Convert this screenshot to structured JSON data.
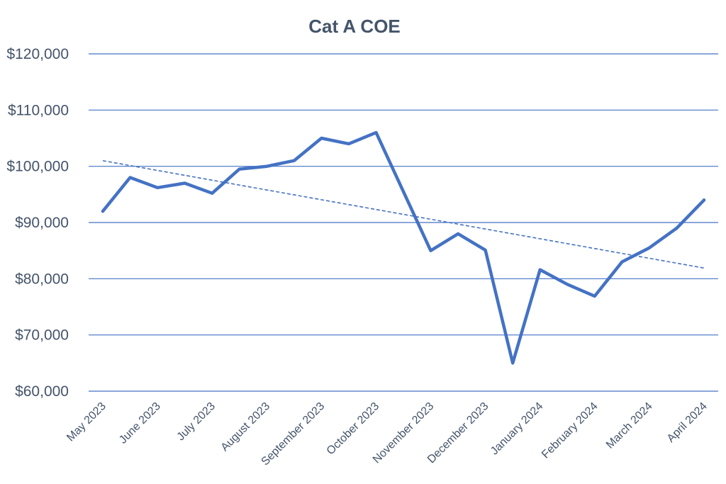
{
  "chart_data": {
    "type": "line",
    "title": "Cat A COE",
    "xlabel": "",
    "ylabel": "",
    "ylim": [
      60000,
      120000
    ],
    "ytick_step": 10000,
    "y_tick_labels": [
      "$60,000",
      "$70,000",
      "$80,000",
      "$90,000",
      "$100,000",
      "$110,000",
      "$120,000"
    ],
    "x_tick_labels": [
      "May 2023",
      "June 2023",
      "July 2023",
      "August 2023",
      "September 2023",
      "October 2023",
      "November 2023",
      "December 2023",
      "January 2024",
      "February 2024",
      "March 2024",
      "April 2024"
    ],
    "grid": true,
    "series": [
      {
        "name": "Cat A COE",
        "color": "#4472c4",
        "values": [
          92000,
          98000,
          96200,
          97000,
          95200,
          99500,
          100000,
          101000,
          105000,
          104000,
          106000,
          95500,
          85000,
          88000,
          85100,
          65000,
          81600,
          79000,
          76900,
          83000,
          85500,
          89000,
          94000
        ]
      }
    ],
    "trendline": {
      "type": "linear",
      "style": "dashed",
      "color": "#4472c4",
      "start": 101000,
      "end": 81900
    }
  }
}
